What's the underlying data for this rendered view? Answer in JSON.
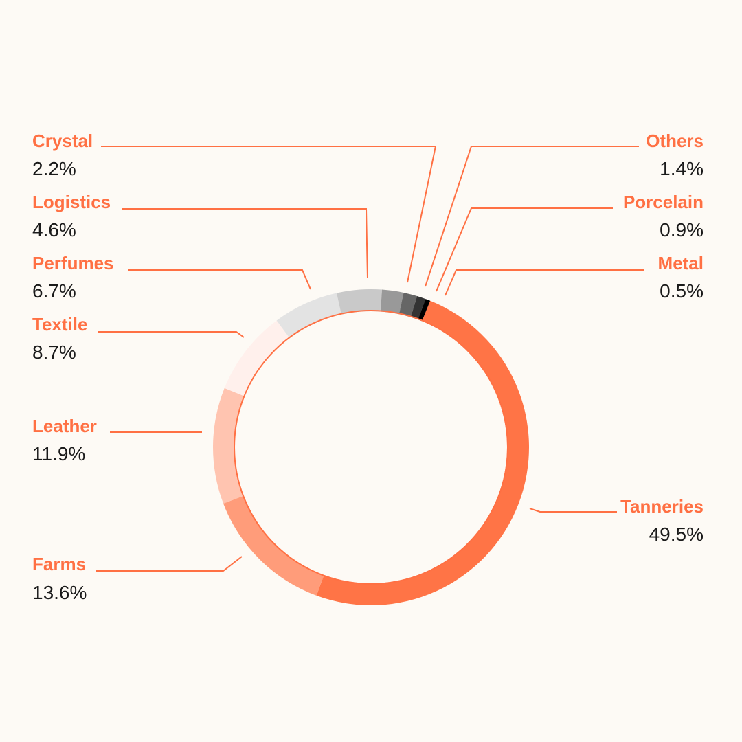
{
  "chart_data": {
    "type": "pie",
    "variant": "donut",
    "legend": "none",
    "labels_position": "outside-with-leader-lines",
    "slices": [
      {
        "label": "Tanneries",
        "value_label": "49.5%",
        "value": 49.5,
        "color": "#ff7446"
      },
      {
        "label": "Farms",
        "value_label": "13.6%",
        "value": 13.6,
        "color": "#ff9c7a"
      },
      {
        "label": "Leather",
        "value_label": "11.9%",
        "value": 11.9,
        "color": "#ffc4b0"
      },
      {
        "label": "Textile",
        "value_label": "8.7%",
        "value": 8.7,
        "color": "#fff0ec"
      },
      {
        "label": "Perfumes",
        "value_label": "6.7%",
        "value": 6.7,
        "color": "#e3e3e3"
      },
      {
        "label": "Logistics",
        "value_label": "4.6%",
        "value": 4.6,
        "color": "#c9c9c9"
      },
      {
        "label": "Crystal",
        "value_label": "2.2%",
        "value": 2.2,
        "color": "#999999"
      },
      {
        "label": "Others",
        "value_label": "1.4%",
        "value": 1.4,
        "color": "#666666"
      },
      {
        "label": "Porcelain",
        "value_label": "0.9%",
        "value": 0.9,
        "color": "#333333"
      },
      {
        "label": "Metal",
        "value_label": "0.5%",
        "value": 0.5,
        "color": "#000000"
      }
    ],
    "accent_color": "#ff7043",
    "background_color": "#fdfaf5"
  }
}
